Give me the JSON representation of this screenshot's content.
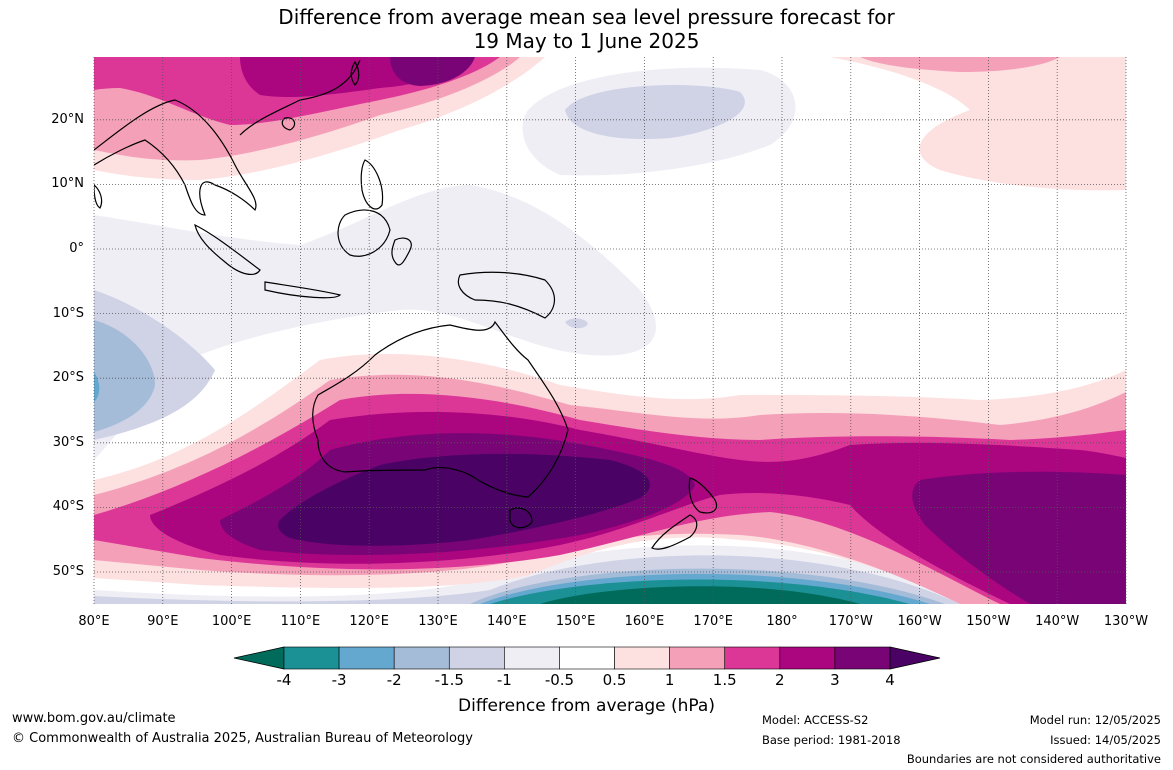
{
  "title": {
    "line1": "Difference from average mean sea level pressure forecast for",
    "line2": "19 May to 1 June 2025"
  },
  "map": {
    "lon_range": [
      80,
      230
    ],
    "lat_range": [
      -55,
      30
    ],
    "lat_labels": [
      "20°N",
      "10°N",
      "0°",
      "10°S",
      "20°S",
      "30°S",
      "40°S",
      "50°S"
    ],
    "lat_values": [
      20,
      10,
      0,
      -10,
      -20,
      -30,
      -40,
      -50
    ],
    "lon_labels": [
      "80°E",
      "90°E",
      "100°E",
      "110°E",
      "120°E",
      "130°E",
      "140°E",
      "150°E",
      "160°E",
      "170°E",
      "180°",
      "170°W",
      "160°W",
      "150°W",
      "140°W",
      "130°W"
    ],
    "lon_values": [
      80,
      90,
      100,
      110,
      120,
      130,
      140,
      150,
      160,
      170,
      180,
      190,
      200,
      210,
      220,
      230
    ],
    "grid": "dotted"
  },
  "colorbar": {
    "levels": [
      "-4",
      "-3",
      "-2",
      "-1.5",
      "-1",
      "-0.5",
      "0.5",
      "1",
      "1.5",
      "2",
      "3",
      "4"
    ],
    "colors": [
      "#006b5a",
      "#1b9196",
      "#64a8cf",
      "#a5bcd8",
      "#d0d2e6",
      "#efeef5",
      "#ffffff",
      "#fde0e0",
      "#f5a0b9",
      "#dc3797",
      "#ab0580",
      "#790476",
      "#4a0265"
    ],
    "label": "Difference from average (hPa)"
  },
  "footer": {
    "website": "www.bom.gov.au/climate",
    "copyright": "© Commonwealth of Australia 2025, Australian Bureau of Meteorology",
    "model": "Model: ACCESS-S2",
    "base_period": "Base period: 1981-2018",
    "model_run": "Model run: 12/05/2025",
    "issued": "Issued: 14/05/2025",
    "disclaimer": "Boundaries are not considered authoritative"
  }
}
